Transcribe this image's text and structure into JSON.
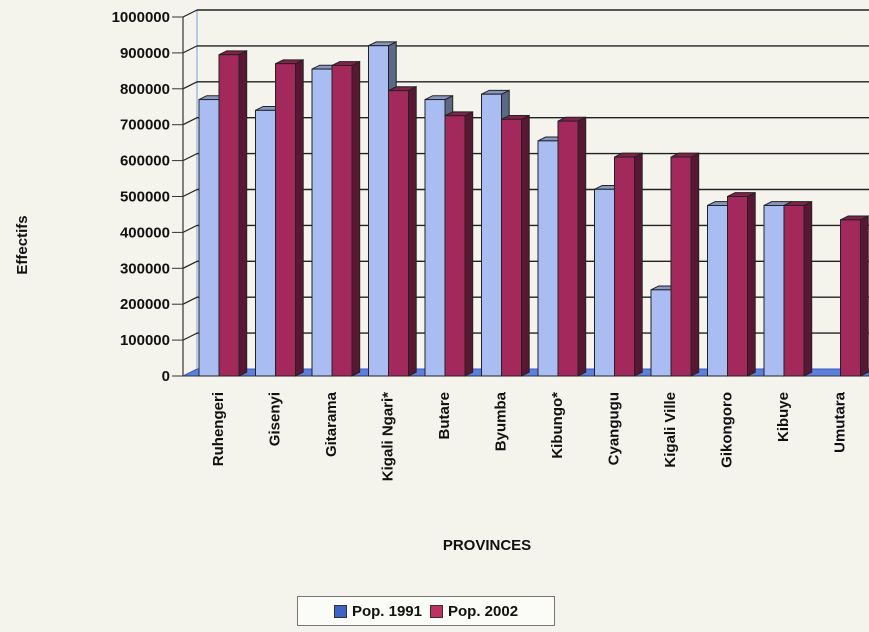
{
  "chart_data": {
    "type": "bar",
    "ylabel": "Effectifs",
    "xlabel": "PROVINCES",
    "ylim": [
      0,
      1000000
    ],
    "yticks": [
      "0",
      "100000",
      "200000",
      "300000",
      "400000",
      "500000",
      "600000",
      "700000",
      "800000",
      "900000",
      "1000000"
    ],
    "ytick_values": [
      0,
      100000,
      200000,
      300000,
      400000,
      500000,
      600000,
      700000,
      800000,
      900000,
      1000000
    ],
    "grid": true,
    "legend_position": "bottom",
    "categories": [
      "Ruhengeri",
      "Gisenyi",
      "Gitarama",
      "Kigali Ngari*",
      "Butare",
      "Byumba",
      "Kibungo*",
      "Cyangugu",
      "Kigali Ville",
      "Gikongoro",
      "Kibuye",
      "Umutara"
    ],
    "series": [
      {
        "name": "Pop. 1991",
        "color": "#a9bdf2",
        "values": [
          770000,
          740000,
          855000,
          920000,
          770000,
          785000,
          655000,
          520000,
          240000,
          475000,
          475000,
          0
        ]
      },
      {
        "name": "Pop. 2002",
        "color": "#a3295c",
        "values": [
          895000,
          870000,
          865000,
          795000,
          725000,
          715000,
          710000,
          610000,
          610000,
          500000,
          475000,
          435000
        ]
      }
    ]
  }
}
